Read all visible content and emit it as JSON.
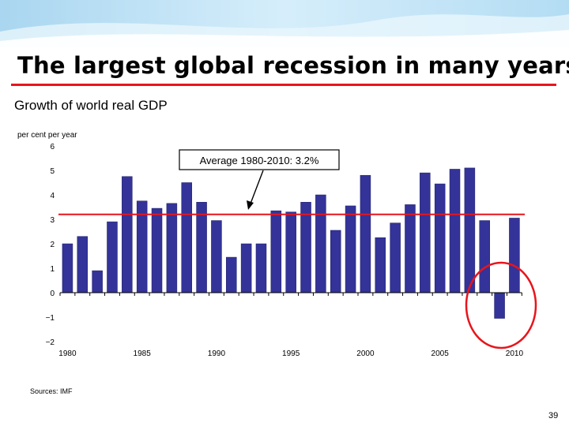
{
  "slide": {
    "title": "The largest global recession in many years",
    "subtitle": "Growth of world real GDP",
    "sources": "Sources: IMF",
    "page_number": "39"
  },
  "colors": {
    "bar": "#333399",
    "average_line": "#e8141c",
    "highlight_circle": "#e8141c",
    "banner": "#cfe8f6"
  },
  "chart_data": {
    "type": "bar",
    "ylabel": "per cent per year",
    "ylim": [
      -2,
      6
    ],
    "yticks": [
      "6",
      "5",
      "4",
      "3",
      "2",
      "1",
      "0",
      "−1",
      "−2"
    ],
    "xtick_labels": [
      "1980",
      "1985",
      "1990",
      "1995",
      "2000",
      "2005",
      "2010"
    ],
    "x": [
      1980,
      1981,
      1982,
      1983,
      1984,
      1985,
      1986,
      1987,
      1988,
      1989,
      1990,
      1991,
      1992,
      1993,
      1994,
      1995,
      1996,
      1997,
      1998,
      1999,
      2000,
      2001,
      2002,
      2003,
      2004,
      2005,
      2006,
      2007,
      2008,
      2009,
      2010
    ],
    "values": [
      2.0,
      2.3,
      0.9,
      2.9,
      4.75,
      3.75,
      3.45,
      3.65,
      4.5,
      3.7,
      2.95,
      1.45,
      2.0,
      2.0,
      3.35,
      3.3,
      3.7,
      4.0,
      2.55,
      3.55,
      4.8,
      2.25,
      2.85,
      3.6,
      4.9,
      4.45,
      5.05,
      5.1,
      2.95,
      -1.05,
      3.05
    ],
    "average": 3.2,
    "annotation": "Average 1980-2010: 3.2%"
  }
}
